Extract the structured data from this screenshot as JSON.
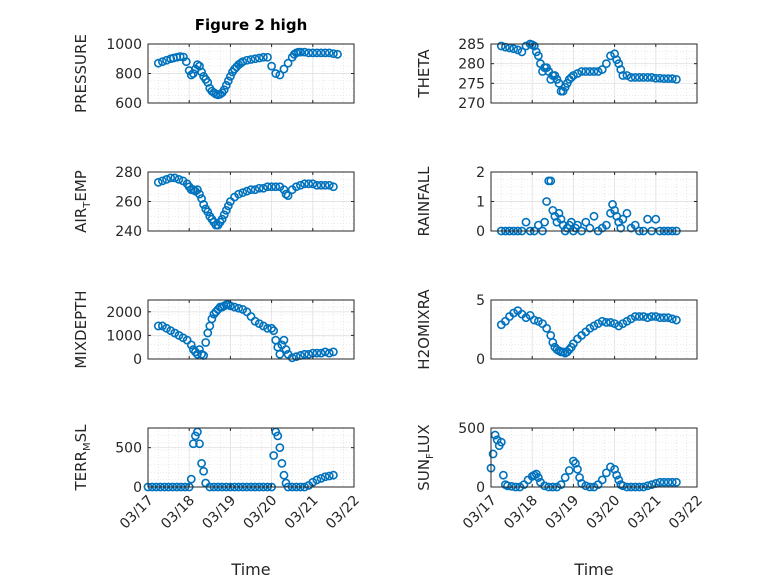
{
  "figure": {
    "title": "Figure 2 high",
    "xlabel": "Time"
  },
  "chart_data": [
    {
      "type": "scatter",
      "ylabel": "PRESSURE",
      "ylim": [
        600,
        1000
      ],
      "yticks": [
        600,
        800,
        1000
      ],
      "xlim": [
        0,
        5
      ],
      "grid": true,
      "marker_color": "#0072BD",
      "x": [
        0.25,
        0.35,
        0.45,
        0.55,
        0.62,
        0.7,
        0.78,
        0.86,
        0.93,
        1.0,
        1.05,
        1.1,
        1.15,
        1.2,
        1.25,
        1.3,
        1.35,
        1.4,
        1.45,
        1.5,
        1.55,
        1.6,
        1.65,
        1.7,
        1.75,
        1.8,
        1.85,
        1.9,
        1.95,
        2.0,
        2.05,
        2.1,
        2.15,
        2.2,
        2.25,
        2.3,
        2.4,
        2.5,
        2.6,
        2.7,
        2.8,
        2.9,
        3.0,
        3.1,
        3.2,
        3.3,
        3.4,
        3.5,
        3.55,
        3.6,
        3.65,
        3.7,
        3.8,
        3.9,
        4.0,
        4.1,
        4.2,
        4.3,
        4.4,
        4.5,
        4.6
      ],
      "y": [
        870,
        880,
        890,
        900,
        905,
        910,
        915,
        912,
        880,
        820,
        790,
        800,
        830,
        860,
        850,
        810,
        780,
        760,
        740,
        700,
        680,
        670,
        660,
        655,
        660,
        670,
        690,
        720,
        750,
        780,
        810,
        830,
        845,
        860,
        870,
        880,
        890,
        895,
        900,
        905,
        910,
        910,
        850,
        800,
        790,
        830,
        870,
        910,
        930,
        940,
        945,
        945,
        945,
        940,
        940,
        940,
        940,
        940,
        940,
        935,
        930
      ]
    },
    {
      "type": "scatter",
      "ylabel": "THETA",
      "ylim": [
        270,
        285
      ],
      "yticks": [
        270,
        275,
        280,
        285
      ],
      "xlim": [
        0,
        5
      ],
      "grid": true,
      "marker_color": "#0072BD",
      "x": [
        0.25,
        0.35,
        0.45,
        0.55,
        0.65,
        0.75,
        0.85,
        0.95,
        1.0,
        1.05,
        1.1,
        1.15,
        1.2,
        1.25,
        1.3,
        1.35,
        1.4,
        1.45,
        1.5,
        1.55,
        1.6,
        1.65,
        1.7,
        1.75,
        1.8,
        1.85,
        1.9,
        1.95,
        2.0,
        2.1,
        2.2,
        2.3,
        2.4,
        2.5,
        2.6,
        2.7,
        2.8,
        2.9,
        3.0,
        3.05,
        3.1,
        3.15,
        3.2,
        3.3,
        3.4,
        3.5,
        3.6,
        3.7,
        3.8,
        3.9,
        4.0,
        4.1,
        4.2,
        4.3,
        4.4,
        4.5
      ],
      "y": [
        284.5,
        284.2,
        284,
        283.8,
        283.5,
        283,
        284.5,
        285,
        284.8,
        284.5,
        283,
        282,
        280,
        278,
        279,
        279,
        278,
        276,
        277,
        277,
        276,
        275,
        273,
        273,
        274,
        275,
        276,
        276.5,
        277,
        277.5,
        278,
        278,
        278,
        278,
        278,
        278.5,
        280,
        282,
        282.5,
        281,
        280,
        278.5,
        277,
        277,
        276.5,
        276.5,
        276.5,
        276.5,
        276.5,
        276.5,
        276.3,
        276.3,
        276.2,
        276.2,
        276.2,
        276
      ]
    },
    {
      "type": "scatter",
      "ylabel": "AIR_TEMP",
      "ylim": [
        240,
        280
      ],
      "yticks": [
        240,
        260,
        280
      ],
      "xlim": [
        0,
        5
      ],
      "grid": true,
      "marker_color": "#0072BD",
      "x": [
        0.25,
        0.35,
        0.45,
        0.55,
        0.65,
        0.75,
        0.85,
        0.95,
        1.0,
        1.05,
        1.1,
        1.15,
        1.2,
        1.25,
        1.3,
        1.35,
        1.4,
        1.45,
        1.5,
        1.55,
        1.6,
        1.65,
        1.7,
        1.75,
        1.8,
        1.85,
        1.9,
        1.95,
        2.0,
        2.1,
        2.2,
        2.3,
        2.4,
        2.5,
        2.6,
        2.7,
        2.8,
        2.9,
        3.0,
        3.1,
        3.2,
        3.3,
        3.35,
        3.4,
        3.5,
        3.6,
        3.7,
        3.8,
        3.9,
        4.0,
        4.1,
        4.2,
        4.3,
        4.4,
        4.5
      ],
      "y": [
        273,
        274,
        275,
        276,
        276,
        275,
        274,
        272,
        270,
        268,
        268,
        267,
        268,
        265,
        262,
        258,
        255,
        253,
        250,
        248,
        246,
        244,
        244,
        246,
        248,
        251,
        254,
        257,
        260,
        263,
        265,
        266,
        267,
        268,
        268,
        269,
        269,
        270,
        270,
        270,
        270,
        268,
        265,
        264,
        268,
        270,
        271,
        272,
        272,
        272,
        271,
        271,
        271,
        271,
        270
      ]
    },
    {
      "type": "scatter",
      "ylabel": "RAINFALL",
      "ylim": [
        0,
        2
      ],
      "yticks": [
        0,
        1,
        2
      ],
      "xlim": [
        0,
        5
      ],
      "grid": true,
      "marker_color": "#0072BD",
      "x": [
        0.25,
        0.35,
        0.45,
        0.55,
        0.65,
        0.75,
        0.85,
        0.95,
        1.05,
        1.15,
        1.25,
        1.3,
        1.35,
        1.4,
        1.45,
        1.5,
        1.55,
        1.6,
        1.65,
        1.7,
        1.75,
        1.8,
        1.85,
        1.9,
        1.95,
        2.0,
        2.05,
        2.1,
        2.2,
        2.3,
        2.4,
        2.5,
        2.6,
        2.7,
        2.8,
        2.9,
        2.95,
        3.0,
        3.05,
        3.1,
        3.15,
        3.2,
        3.3,
        3.4,
        3.5,
        3.6,
        3.7,
        3.8,
        3.9,
        4.0,
        4.1,
        4.2,
        4.3,
        4.4,
        4.5
      ],
      "y": [
        0,
        0,
        0,
        0,
        0,
        0,
        0.3,
        0,
        0,
        0.2,
        0,
        0.3,
        1.0,
        1.7,
        1.7,
        0.7,
        0.5,
        0.3,
        0.6,
        0.4,
        0.2,
        0,
        0.1,
        0.2,
        0.3,
        0,
        0.1,
        0.2,
        0,
        0.3,
        0.1,
        0.5,
        0,
        0.1,
        0.2,
        0.6,
        0.9,
        0.7,
        0.5,
        0.3,
        0.1,
        0.4,
        0.6,
        0.1,
        0.2,
        0,
        0,
        0.4,
        0,
        0.4,
        0,
        0,
        0,
        0,
        0
      ]
    },
    {
      "type": "scatter",
      "ylabel": "MIXDEPTH",
      "ylim": [
        0,
        2500
      ],
      "yticks": [
        0,
        1000,
        2000
      ],
      "xlim": [
        0,
        5
      ],
      "grid": true,
      "marker_color": "#0072BD",
      "x": [
        0.25,
        0.35,
        0.45,
        0.55,
        0.65,
        0.75,
        0.85,
        0.95,
        1.05,
        1.1,
        1.15,
        1.2,
        1.25,
        1.3,
        1.35,
        1.4,
        1.45,
        1.5,
        1.55,
        1.6,
        1.65,
        1.7,
        1.75,
        1.8,
        1.85,
        1.9,
        1.95,
        2.0,
        2.1,
        2.2,
        2.3,
        2.4,
        2.5,
        2.6,
        2.7,
        2.8,
        2.9,
        3.0,
        3.05,
        3.1,
        3.15,
        3.2,
        3.25,
        3.3,
        3.35,
        3.4,
        3.5,
        3.6,
        3.7,
        3.8,
        3.9,
        4.0,
        4.1,
        4.2,
        4.3,
        4.4,
        4.5
      ],
      "y": [
        1400,
        1400,
        1300,
        1200,
        1100,
        1000,
        900,
        800,
        600,
        400,
        300,
        200,
        400,
        200,
        150,
        700,
        1100,
        1400,
        1700,
        1900,
        2000,
        2100,
        2200,
        2200,
        2250,
        2300,
        2300,
        2250,
        2200,
        2150,
        2100,
        2000,
        1800,
        1600,
        1500,
        1400,
        1300,
        1300,
        1200,
        800,
        500,
        200,
        600,
        800,
        400,
        200,
        50,
        100,
        150,
        200,
        200,
        250,
        250,
        250,
        300,
        250,
        300
      ]
    },
    {
      "type": "scatter",
      "ylabel": "H2OMIXRA",
      "ylim": [
        0,
        5
      ],
      "yticks": [
        0,
        5
      ],
      "xlim": [
        0,
        5
      ],
      "grid": true,
      "marker_color": "#0072BD",
      "x": [
        0.25,
        0.35,
        0.45,
        0.55,
        0.65,
        0.75,
        0.85,
        0.95,
        1.05,
        1.15,
        1.25,
        1.35,
        1.45,
        1.5,
        1.55,
        1.6,
        1.65,
        1.7,
        1.75,
        1.8,
        1.85,
        1.9,
        1.95,
        2.0,
        2.1,
        2.2,
        2.3,
        2.4,
        2.5,
        2.6,
        2.7,
        2.8,
        2.9,
        3.0,
        3.1,
        3.2,
        3.3,
        3.4,
        3.5,
        3.6,
        3.7,
        3.8,
        3.9,
        4.0,
        4.1,
        4.2,
        4.3,
        4.4,
        4.5
      ],
      "y": [
        2.9,
        3.2,
        3.6,
        3.9,
        4.1,
        3.8,
        3.5,
        3.7,
        3.3,
        3.2,
        3.0,
        2.6,
        2.0,
        1.4,
        1.0,
        0.8,
        0.7,
        0.6,
        0.6,
        0.5,
        0.6,
        0.8,
        1.0,
        1.3,
        1.7,
        2.0,
        2.3,
        2.6,
        2.8,
        3.0,
        3.2,
        3.1,
        3.1,
        3.0,
        2.8,
        3.0,
        3.2,
        3.4,
        3.6,
        3.6,
        3.6,
        3.5,
        3.6,
        3.6,
        3.5,
        3.5,
        3.5,
        3.4,
        3.3
      ]
    },
    {
      "type": "scatter",
      "ylabel": "TERR_MSL",
      "ylim": [
        0,
        750
      ],
      "yticks": [
        0,
        500
      ],
      "xlim": [
        0,
        5
      ],
      "grid": true,
      "marker_color": "#0072BD",
      "x": [
        0.0,
        0.1,
        0.2,
        0.3,
        0.4,
        0.5,
        0.6,
        0.7,
        0.8,
        0.9,
        1.0,
        1.05,
        1.1,
        1.15,
        1.2,
        1.25,
        1.3,
        1.35,
        1.4,
        1.5,
        1.6,
        1.7,
        1.8,
        1.9,
        2.0,
        2.1,
        2.2,
        2.3,
        2.4,
        2.5,
        2.6,
        2.7,
        2.8,
        2.9,
        3.0,
        3.05,
        3.1,
        3.15,
        3.2,
        3.25,
        3.3,
        3.35,
        3.4,
        3.5,
        3.6,
        3.7,
        3.8,
        3.9,
        4.0,
        4.1,
        4.2,
        4.3,
        4.4,
        4.5
      ],
      "y": [
        0,
        0,
        0,
        0,
        0,
        0,
        0,
        0,
        0,
        0,
        0,
        100,
        550,
        650,
        700,
        550,
        300,
        200,
        50,
        0,
        0,
        0,
        0,
        0,
        0,
        0,
        0,
        0,
        0,
        0,
        0,
        0,
        0,
        0,
        0,
        400,
        700,
        650,
        500,
        300,
        150,
        50,
        0,
        0,
        0,
        0,
        0,
        20,
        60,
        90,
        110,
        130,
        140,
        150
      ]
    },
    {
      "type": "scatter",
      "ylabel": "SUN_FLUX",
      "ylim": [
        0,
        500
      ],
      "yticks": [
        0,
        500
      ],
      "xlim": [
        0,
        5
      ],
      "grid": true,
      "marker_color": "#0072BD",
      "x": [
        0.0,
        0.05,
        0.1,
        0.15,
        0.2,
        0.25,
        0.3,
        0.35,
        0.4,
        0.5,
        0.6,
        0.7,
        0.8,
        0.9,
        1.0,
        1.05,
        1.1,
        1.15,
        1.2,
        1.3,
        1.4,
        1.5,
        1.6,
        1.7,
        1.8,
        1.9,
        2.0,
        2.05,
        2.1,
        2.15,
        2.2,
        2.3,
        2.4,
        2.5,
        2.6,
        2.7,
        2.8,
        2.9,
        3.0,
        3.05,
        3.1,
        3.15,
        3.2,
        3.3,
        3.4,
        3.5,
        3.6,
        3.7,
        3.8,
        3.9,
        4.0,
        4.1,
        4.2,
        4.3,
        4.4,
        4.5
      ],
      "y": [
        160,
        280,
        440,
        400,
        350,
        380,
        100,
        20,
        10,
        5,
        0,
        0,
        20,
        60,
        90,
        100,
        110,
        80,
        40,
        10,
        0,
        0,
        0,
        20,
        80,
        140,
        220,
        200,
        150,
        80,
        30,
        10,
        0,
        0,
        20,
        60,
        120,
        170,
        150,
        100,
        60,
        20,
        10,
        0,
        0,
        0,
        0,
        0,
        10,
        20,
        30,
        40,
        40,
        40,
        40,
        40
      ]
    }
  ],
  "xaxis": {
    "tick_labels": [
      "03/17",
      "03/18",
      "03/19",
      "03/20",
      "03/21",
      "03/22"
    ],
    "tick_values": [
      0,
      1,
      2,
      3,
      4,
      5
    ]
  }
}
